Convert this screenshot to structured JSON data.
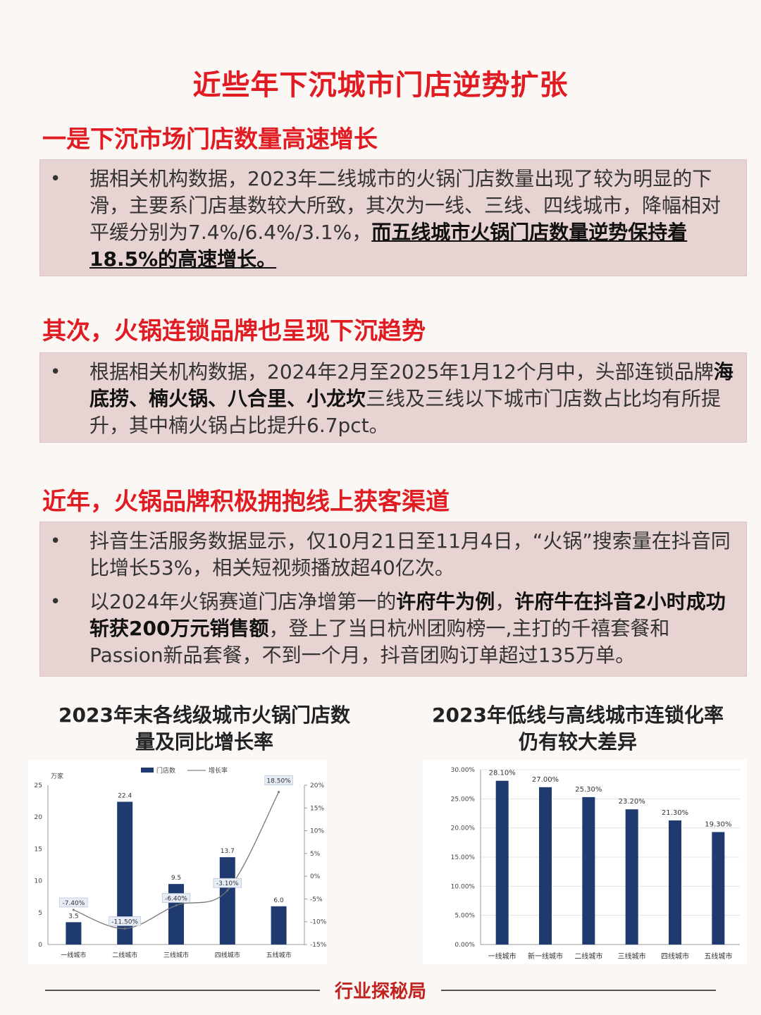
{
  "title": "近些年下沉城市门店逆势扩张",
  "sections": [
    {
      "heading": "一是下沉市场门店数量高速增长",
      "bullets": [
        {
          "plain": "据相关机构数据，2023年二线城市的火锅门店数量出现了较为明显的下滑，主要系门店基数较大所致，其次为一线、三线、四线城市，降幅相对平缓分别为7.4%/6.4%/3.1%，",
          "underline": "而五线城市火锅门店数量逆势保持着18.5%的高速增长。"
        }
      ]
    },
    {
      "heading": "其次，火锅连锁品牌也呈现下沉趋势",
      "bullets": [
        {
          "p1": "根据相关机构数据，2024年2月至2025年1月12个月中，头部连锁品牌",
          "bold1": "海底捞、楠火锅、八合里、小龙坎",
          "p2": "三线及三线以下城市门店数占比均有所提升，其中楠火锅占比提升6.7pct。"
        }
      ]
    },
    {
      "heading": "近年，火锅品牌积极拥抱线上获客渠道",
      "bullets": [
        {
          "plain": "抖音生活服务数据显示，仅10月21日至11月4日，“火锅”搜索量在抖音同比增长53%，相关短视频播放超40亿次。"
        },
        {
          "p1": "以2024年火锅赛道门店净增第一的",
          "bold1": "许府牛为例",
          "p2": "，",
          "bold2": "许府牛在抖音2小时成功斩获200万元销售额",
          "p3": "，登上了当日杭州团购榜一,主打的千禧套餐和Passion新品套餐，不到一个月，抖音团购订单超过135万单。"
        }
      ]
    }
  ],
  "bullet_symbol": "•",
  "footer": "行业探秘局",
  "colors": {
    "accent": "#e11b22",
    "bar": "#1f3a6e",
    "box": "#e8d3d3"
  },
  "chart_data": [
    {
      "type": "bar",
      "title": "2023年末各线级城市火锅门店数量及同比增长率",
      "title_lines": [
        "2023年末各线级城市火锅门店数",
        "量及同比增长率"
      ],
      "categories": [
        "一线城市",
        "二线城市",
        "三线城市",
        "四线城市",
        "五线城市"
      ],
      "series": [
        {
          "name": "门店数",
          "type": "bar",
          "axis": "left",
          "values": [
            3.5,
            22.4,
            9.5,
            13.7,
            6.0
          ],
          "labels": [
            "3.5",
            "22.4",
            "9.5",
            "13.7",
            "6.0"
          ]
        },
        {
          "name": "增长率",
          "type": "line",
          "axis": "right",
          "values": [
            -7.4,
            -11.5,
            -6.4,
            -3.1,
            18.5
          ],
          "labels": [
            "-7.40%",
            "-11.50%",
            "-6.40%",
            "-3.10%",
            "18.50%"
          ]
        }
      ],
      "ylabel": "万家",
      "ylim": [
        0,
        25
      ],
      "yticks": [
        "0",
        "5",
        "10",
        "15",
        "20",
        "25"
      ],
      "y2lim": [
        -15,
        20
      ],
      "y2ticks": [
        "-15%",
        "-10%",
        "-5%",
        "0%",
        "5%",
        "10%",
        "15%",
        "20%"
      ],
      "legend": "top-center",
      "grid": false
    },
    {
      "type": "bar",
      "title": "2023年低线与高线城市连锁化率仍有较大差异",
      "title_lines": [
        "2023年低线与高线城市连锁化率",
        "仍有较大差异"
      ],
      "categories": [
        "一线城市",
        "新一线城市",
        "二线城市",
        "三线城市",
        "四线城市",
        "五线城市"
      ],
      "values": [
        28.1,
        27.0,
        25.3,
        23.2,
        21.3,
        19.3
      ],
      "labels": [
        "28.10%",
        "27.00%",
        "25.30%",
        "23.20%",
        "21.30%",
        "19.30%"
      ],
      "ylim": [
        0,
        30
      ],
      "yticks": [
        "0.00%",
        "5.00%",
        "10.00%",
        "15.00%",
        "20.00%",
        "25.00%",
        "30.00%"
      ],
      "grid": true
    }
  ]
}
